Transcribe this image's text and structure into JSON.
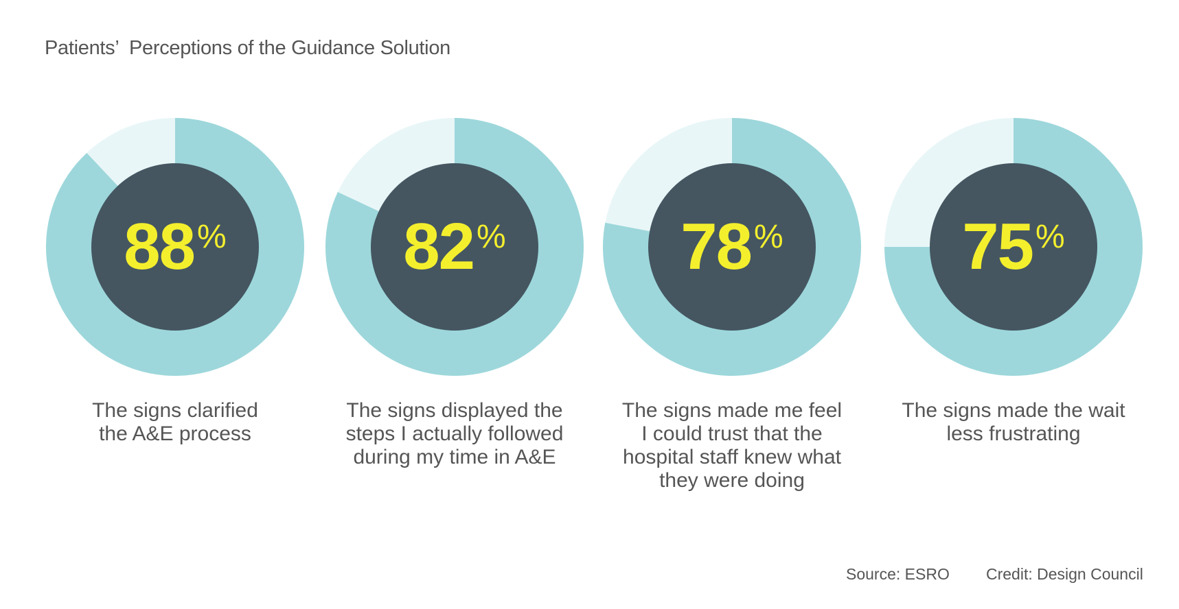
{
  "title": "Patients’  Perceptions of the Guidance Solution",
  "colors": {
    "fill": "#9dd7db",
    "remainder": "#e9f6f7",
    "center": "#455661",
    "value_text": "#f4ef2d",
    "text": "#555555"
  },
  "chart_data": {
    "type": "pie",
    "items": [
      {
        "value": 88,
        "value_label": "88",
        "unit": "%",
        "caption": "The signs clarified\nthe A&E process"
      },
      {
        "value": 82,
        "value_label": "82",
        "unit": "%",
        "caption": "The signs displayed the\nsteps I actually followed\nduring my time in A&E"
      },
      {
        "value": 78,
        "value_label": "78",
        "unit": "%",
        "caption": "The signs made me feel\nI could trust that the\nhospital staff knew what\nthey were doing"
      },
      {
        "value": 75,
        "value_label": "75",
        "unit": "%",
        "caption": "The signs made the wait\nless frustrating"
      }
    ]
  },
  "footer": {
    "source": "Source: ESRO",
    "credit": "Credit: Design Council"
  }
}
